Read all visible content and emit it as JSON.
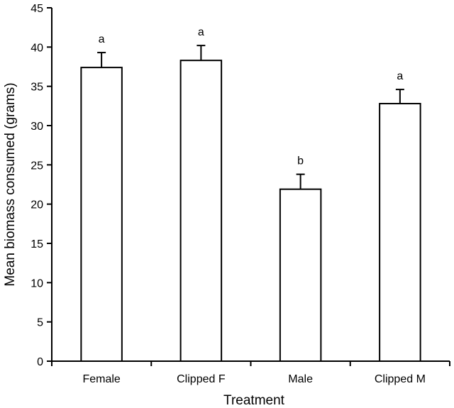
{
  "chart_data": {
    "type": "bar",
    "xlabel": "Treatment",
    "ylabel": "Mean biomass consumed (grams)",
    "ylim": [
      0,
      45
    ],
    "yticks": [
      0,
      5,
      10,
      15,
      20,
      25,
      30,
      35,
      40,
      45
    ],
    "categories": [
      "Female",
      "Clipped F",
      "Male",
      "Clipped M"
    ],
    "values": [
      37.4,
      38.3,
      21.9,
      32.8
    ],
    "error_upper": [
      1.9,
      1.9,
      1.9,
      1.8
    ],
    "significance_labels": [
      "a",
      "a",
      "b",
      "a"
    ],
    "bar_fill": "#ffffff",
    "bar_stroke": "#000000",
    "grid": false,
    "legend": "none"
  }
}
